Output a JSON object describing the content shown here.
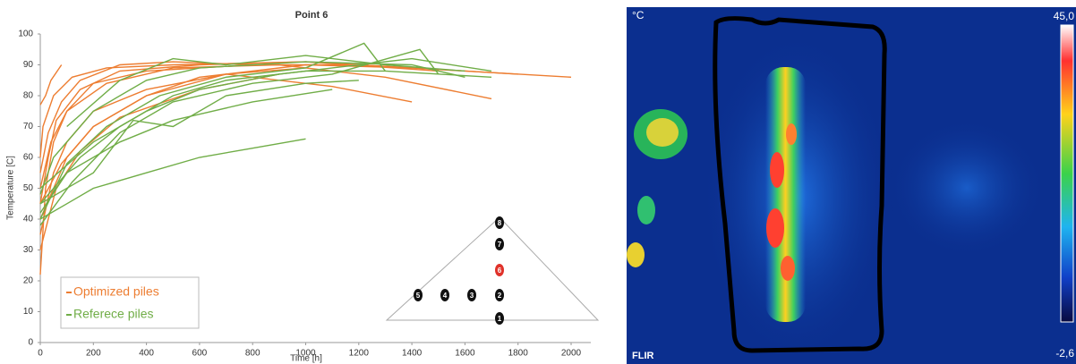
{
  "chart_data": {
    "type": "line",
    "title": "Point 6",
    "x_label": "Time [h]",
    "y_label": "Temperature [C]",
    "xlim": [
      0,
      2000
    ],
    "xticks": [
      0,
      200,
      400,
      600,
      800,
      1000,
      1200,
      1400,
      1600,
      1800,
      2000
    ],
    "ylim": [
      0,
      100
    ],
    "yticks": [
      0,
      10,
      20,
      30,
      40,
      50,
      60,
      70,
      80,
      90,
      100
    ],
    "grid": false,
    "legend_position": "lower left",
    "series": [
      {
        "name": "Optimized piles",
        "color": "#ed7d31",
        "lines": [
          {
            "x": [
              0,
              20,
              50,
              100,
              200,
              400,
              800,
              1200,
              1600,
              2000
            ],
            "values": [
              22,
              50,
              65,
              75,
              84,
              88,
              90,
              90,
              88,
              86
            ]
          },
          {
            "x": [
              0,
              30,
              60,
              150,
              300,
              600,
              1000,
              1400,
              1800
            ],
            "values": [
              45,
              60,
              72,
              82,
              88,
              90,
              91,
              89,
              87
            ]
          },
          {
            "x": [
              0,
              50,
              100,
              200,
              400,
              700,
              1100,
              1400
            ],
            "values": [
              35,
              55,
              65,
              75,
              82,
              87,
              83,
              78
            ]
          },
          {
            "x": [
              0,
              40,
              100,
              250,
              500,
              900,
              1300,
              1700
            ],
            "values": [
              50,
              65,
              75,
              84,
              89,
              90,
              86,
              79
            ]
          },
          {
            "x": [
              0,
              20,
              40,
              80
            ],
            "values": [
              77,
              80,
              85,
              90
            ]
          },
          {
            "x": [
              0,
              100,
              200,
              400,
              600,
              1000,
              1400
            ],
            "values": [
              40,
              60,
              70,
              80,
              86,
              90,
              89
            ]
          },
          {
            "x": [
              0,
              30,
              80,
              150,
              300,
              500,
              800
            ],
            "values": [
              55,
              68,
              78,
              85,
              90,
              91,
              90
            ]
          },
          {
            "x": [
              0,
              60,
              150,
              300,
              600,
              900
            ],
            "values": [
              30,
              50,
              62,
              73,
              82,
              87
            ]
          },
          {
            "x": [
              0,
              10,
              50,
              120,
              250,
              500,
              1000,
              1500
            ],
            "values": [
              60,
              70,
              80,
              86,
              89,
              90,
              91,
              88
            ]
          },
          {
            "x": [
              0,
              80,
              200,
              400,
              700,
              1000
            ],
            "values": [
              45,
              58,
              70,
              80,
              87,
              89
            ]
          }
        ]
      },
      {
        "name": "Referece piles",
        "color": "#70ad47",
        "lines": [
          {
            "x": [
              0,
              100,
              200,
              400,
              600,
              800,
              1000
            ],
            "values": [
              40,
              45,
              50,
              55,
              60,
              63,
              66
            ]
          },
          {
            "x": [
              0,
              100,
              300,
              500,
              800,
              1100
            ],
            "values": [
              42,
              55,
              65,
              72,
              78,
              82
            ]
          },
          {
            "x": [
              0,
              150,
              300,
              500,
              700,
              1000,
              1300,
              1700
            ],
            "values": [
              45,
              60,
              70,
              80,
              85,
              88,
              88,
              86
            ]
          },
          {
            "x": [
              0,
              200,
              400,
              600,
              900,
              1200,
              1400,
              1700
            ],
            "values": [
              50,
              65,
              75,
              82,
              87,
              90,
              92,
              88
            ]
          },
          {
            "x": [
              0,
              100,
              250,
              450,
              700,
              1000,
              1220,
              1300
            ],
            "values": [
              40,
              58,
              70,
              80,
              86,
              89,
              97,
              88
            ]
          },
          {
            "x": [
              0,
              50,
              200,
              400,
              600,
              1000,
              1400,
              1600
            ],
            "values": [
              48,
              60,
              75,
              85,
              89,
              91,
              90,
              86
            ]
          },
          {
            "x": [
              0,
              120,
              300,
              500,
              800,
              1100,
              1430,
              1500
            ],
            "values": [
              38,
              52,
              68,
              78,
              84,
              87,
              95,
              87
            ]
          },
          {
            "x": [
              0,
              200,
              350,
              500,
              700,
              1000,
              1200
            ],
            "values": [
              45,
              55,
              72,
              70,
              80,
              84,
              85
            ]
          },
          {
            "x": [
              100,
              300,
              500,
              700,
              1000,
              1300,
              1600
            ],
            "values": [
              70,
              85,
              92,
              90,
              93,
              90,
              88
            ]
          }
        ]
      }
    ],
    "inset_points": [
      "8",
      "7",
      "6",
      "5",
      "4",
      "3",
      "2",
      "1"
    ],
    "inset_highlight": "6",
    "inset_highlight_color": "#e0322a"
  },
  "thermal_image": {
    "unit": "°C",
    "max_label": "45,0",
    "min_label": "-2,6",
    "logo": "FLIR"
  }
}
